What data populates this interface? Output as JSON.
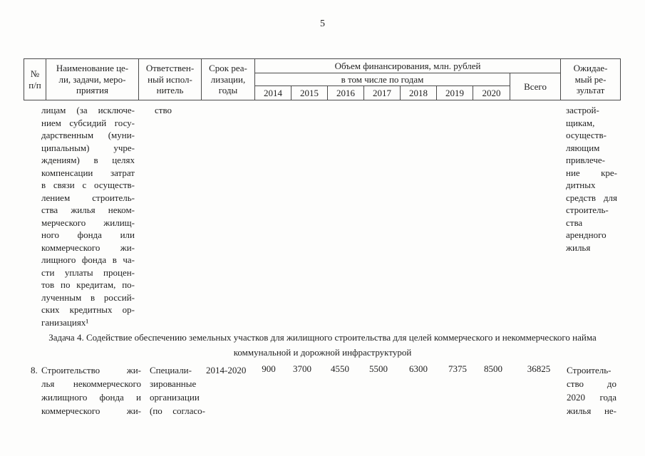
{
  "page_number": "5",
  "table_header": {
    "num_lines": [
      "№",
      "п/п"
    ],
    "name_lines": [
      "Наименование це-",
      "ли, задачи, меро-",
      "приятия"
    ],
    "executor_lines": [
      "Ответствен-",
      "ный испол-",
      "нитель"
    ],
    "term_lines": [
      "Срок реа-",
      "лизации,",
      "годы"
    ],
    "financing": "Объем финансирования, млн. рублей",
    "by_years": "в том числе по годам",
    "years": [
      "2014",
      "2015",
      "2016",
      "2017",
      "2018",
      "2019",
      "2020"
    ],
    "total": "Всего",
    "result_lines": [
      "Ожидае-",
      "мый ре-",
      "зультат"
    ]
  },
  "continuation_row": {
    "name_lines": [
      "лицам (за исключе-",
      "нием субсидий госу-",
      "дарственным (муни-",
      "ципальным) учре-",
      "ждениям) в целях",
      "компенсации затрат",
      "в связи с осуществ-",
      "лением строитель-",
      "ства жилья неком-",
      "мерческого жилищ-",
      "ного фонда или",
      "коммерческого жи-",
      "лищного фонда в ча-",
      "сти уплаты процен-",
      "тов по кредитам, по-",
      "лученным в россий-",
      "ских кредитных ор-",
      "ганизациях¹"
    ],
    "executor": "ство",
    "result_lines": [
      "застрой-",
      "щикам,",
      "осуществ-",
      "ляющим",
      "привлече-",
      "ние кре-",
      "дитных",
      "средств для",
      "строитель-",
      "ства",
      "арендного",
      "жилья"
    ]
  },
  "task_heading": {
    "lines": [
      "Задача 4. Содействие обеспечению земельных участков для жилищного строительства для целей коммерческого и некоммерческого найма",
      "коммунальной и дорожной инфраструктурой"
    ]
  },
  "row8": {
    "num": "8.",
    "name_lines": [
      "Строительство жи-",
      "лья некоммерческого",
      "жилищного фонда и",
      "коммерческого жи-"
    ],
    "executor_lines": [
      "Специали-",
      "зированные",
      "организации",
      "(по согласо-"
    ],
    "term": "2014-2020",
    "values": [
      "900",
      "3700",
      "4550",
      "5500",
      "6300",
      "7375",
      "8500"
    ],
    "total": "36825",
    "result_lines": [
      "Строитель-",
      "ство до",
      "2020 года",
      "жилья не-"
    ]
  }
}
